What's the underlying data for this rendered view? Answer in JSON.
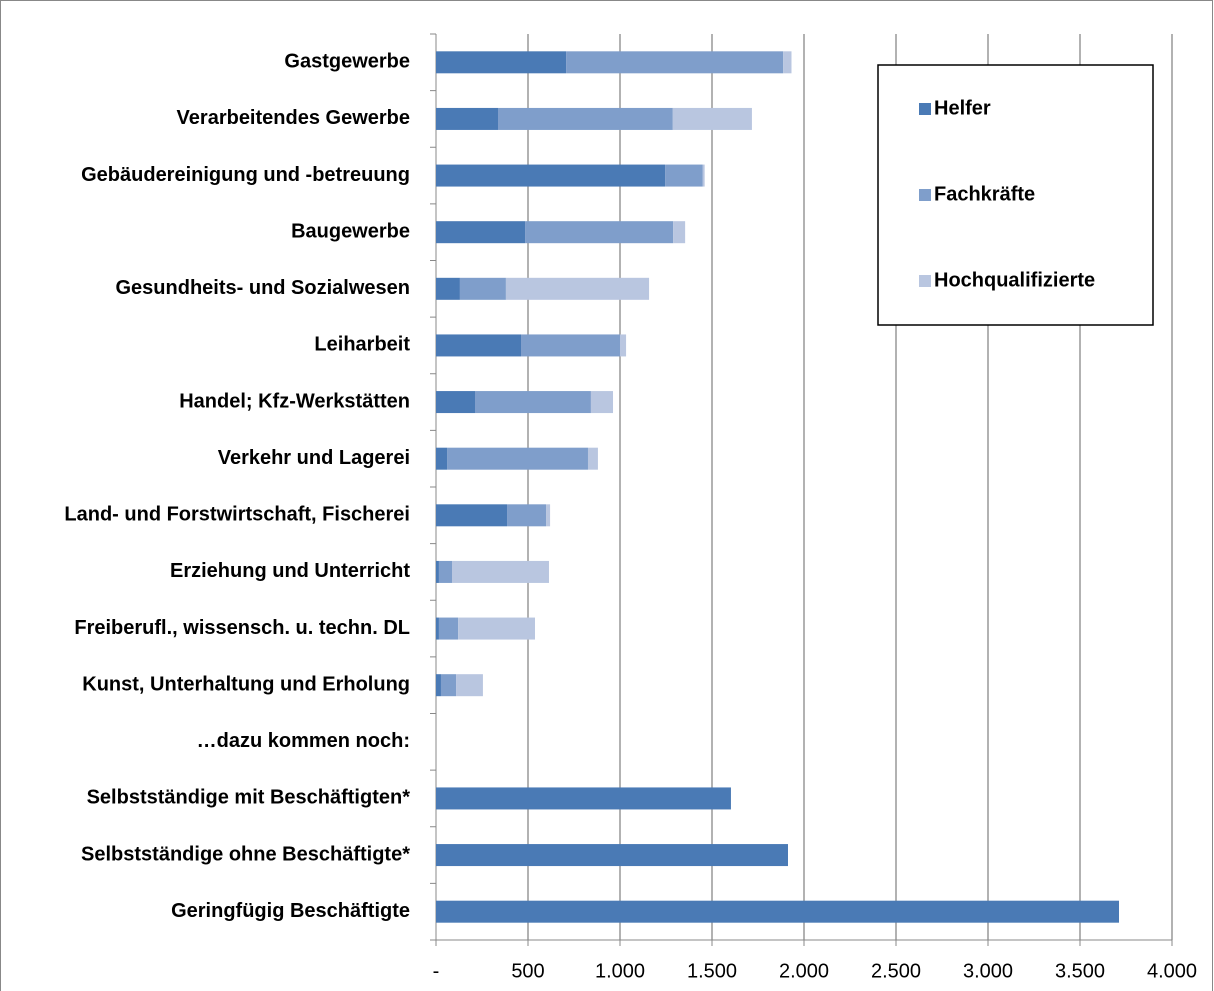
{
  "chart_data": {
    "type": "stacked_barh",
    "categories": [
      "Gastgewerbe",
      "Verarbeitendes Gewerbe",
      "Gebäudereinigung und -betreuung",
      "Baugewerbe",
      "Gesundheits- und Sozialwesen",
      "Leiharbeit",
      "Handel; Kfz-Werkstätten",
      "Verkehr und Lagerei",
      "Land- und Forstwirtschaft, Fischerei",
      "Erziehung und Unterricht",
      "Freiberufl., wissensch. u. techn. DL",
      "Kunst, Unterhaltung und Erholung",
      "…dazu kommen noch:",
      "Selbstständige mit Beschäftigten*",
      "Selbstständige ohne Beschäftigte*",
      "Geringfügig Beschäftigte"
    ],
    "series": [
      {
        "name": "Helfer",
        "color": "#4a7ab5",
        "values": [
          707,
          337,
          1245,
          484,
          130,
          462,
          212,
          60,
          386,
          16,
          16,
          27,
          null,
          1603,
          1913,
          3712
        ]
      },
      {
        "name": "Fachkräfte",
        "color": "#7f9ecb",
        "values": [
          1180,
          950,
          205,
          805,
          250,
          538,
          630,
          766,
          212,
          71,
          104,
          82,
          null,
          null,
          null,
          null
        ]
      },
      {
        "name": "Hochqualifizierte",
        "color": "#b9c6e0",
        "values": [
          45,
          430,
          10,
          65,
          778,
          33,
          120,
          54,
          22,
          527,
          418,
          146,
          null,
          null,
          null,
          null
        ]
      }
    ],
    "xlim": [
      0,
      4000
    ],
    "xticks": [
      {
        "value": 0,
        "label": "-"
      },
      500,
      {
        "value": 1000,
        "label": "1.000"
      },
      {
        "value": 1500,
        "label": "1.500"
      },
      {
        "value": 2000,
        "label": "2.000"
      },
      {
        "value": 2500,
        "label": "2.500"
      },
      {
        "value": 3000,
        "label": "3.000"
      },
      {
        "value": 3500,
        "label": "3.500"
      },
      {
        "value": 4000,
        "label": "4.000"
      }
    ],
    "grid": true,
    "legend": "upper right"
  }
}
